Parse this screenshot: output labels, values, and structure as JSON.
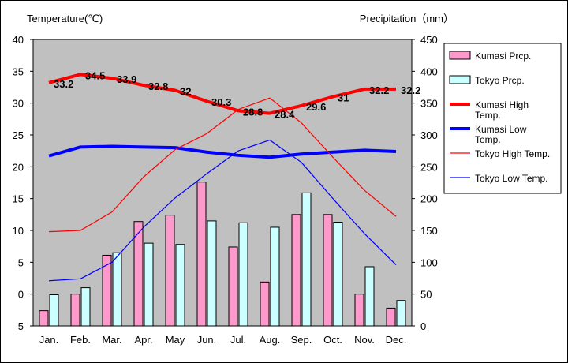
{
  "chart_data": {
    "type": "bar",
    "title": "",
    "left_axis_label": "Temperature(℃)",
    "right_axis_label": "Precipitation（mm）",
    "categories": [
      "Jan.",
      "Feb.",
      "Mar.",
      "Apr.",
      "May",
      "Jun.",
      "Jul.",
      "Aug.",
      "Sep.",
      "Oct.",
      "Nov.",
      "Dec."
    ],
    "left_ylim": [
      -5,
      40
    ],
    "left_ticks": [
      "-5",
      "0",
      "5",
      "10",
      "15",
      "20",
      "25",
      "30",
      "35",
      "40"
    ],
    "right_ylim": [
      0,
      450
    ],
    "right_ticks": [
      "0",
      "50",
      "100",
      "150",
      "200",
      "250",
      "300",
      "350",
      "400",
      "450"
    ],
    "grid": false,
    "legend_position": "right",
    "series": [
      {
        "name": "Kumasi Prcp.",
        "type": "bar",
        "axis": "right",
        "color": "#ff99cc",
        "values": [
          24,
          50,
          111,
          164,
          174,
          226,
          124,
          69,
          175,
          175,
          50,
          28
        ]
      },
      {
        "name": "Tokyo Prcp.",
        "type": "bar",
        "axis": "right",
        "color": "#ccffff",
        "values": [
          49,
          60,
          115,
          130,
          128,
          165,
          162,
          155,
          209,
          163,
          93,
          40
        ]
      },
      {
        "name": "Kumasi High Temp.",
        "type": "line",
        "axis": "left",
        "color": "#ff0000",
        "width": "thick",
        "values": [
          33.2,
          34.5,
          33.9,
          32.8,
          32,
          30.3,
          28.8,
          28.4,
          29.6,
          31,
          32.2,
          32.2
        ],
        "data_labels": [
          "33.2",
          "34.5",
          "33.9",
          "32.8",
          "32",
          "30.3",
          "28.8",
          "28.4",
          "29.6",
          "31",
          "32.2",
          "32.2"
        ]
      },
      {
        "name": "Kumasi Low Temp.",
        "type": "line",
        "axis": "left",
        "color": "#0000ff",
        "width": "thick",
        "values": [
          21.7,
          23.1,
          23.2,
          23.1,
          23.0,
          22.3,
          21.8,
          21.5,
          22.0,
          22.3,
          22.6,
          22.4
        ]
      },
      {
        "name": "Tokyo High Temp.",
        "type": "line",
        "axis": "left",
        "color": "#ff0000",
        "width": "thin",
        "values": [
          9.8,
          10.0,
          12.9,
          18.4,
          22.7,
          25.2,
          29.0,
          30.8,
          26.9,
          21.5,
          16.3,
          12.2
        ]
      },
      {
        "name": "Tokyo Low Temp.",
        "type": "line",
        "axis": "left",
        "color": "#0000ff",
        "width": "thin",
        "values": [
          2.1,
          2.4,
          5.0,
          10.5,
          15.1,
          18.9,
          22.5,
          24.2,
          20.7,
          15.0,
          9.5,
          4.6
        ]
      }
    ]
  }
}
